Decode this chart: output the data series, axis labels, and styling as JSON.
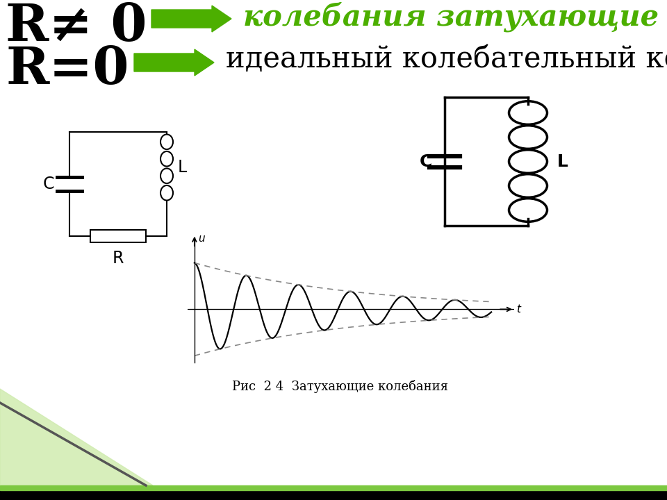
{
  "bg_color": "#ffffff",
  "line1_text": "R≠ 0",
  "line2_text": "R=0",
  "arrow_color": "#4caf00",
  "text1_italic": "колебания затухающие",
  "text2_normal": "идеальный колебательный контур",
  "caption": "Рис  2 4  Затухающие колебания",
  "damping": 0.28,
  "omega": 5.5,
  "t_max": 6.5
}
